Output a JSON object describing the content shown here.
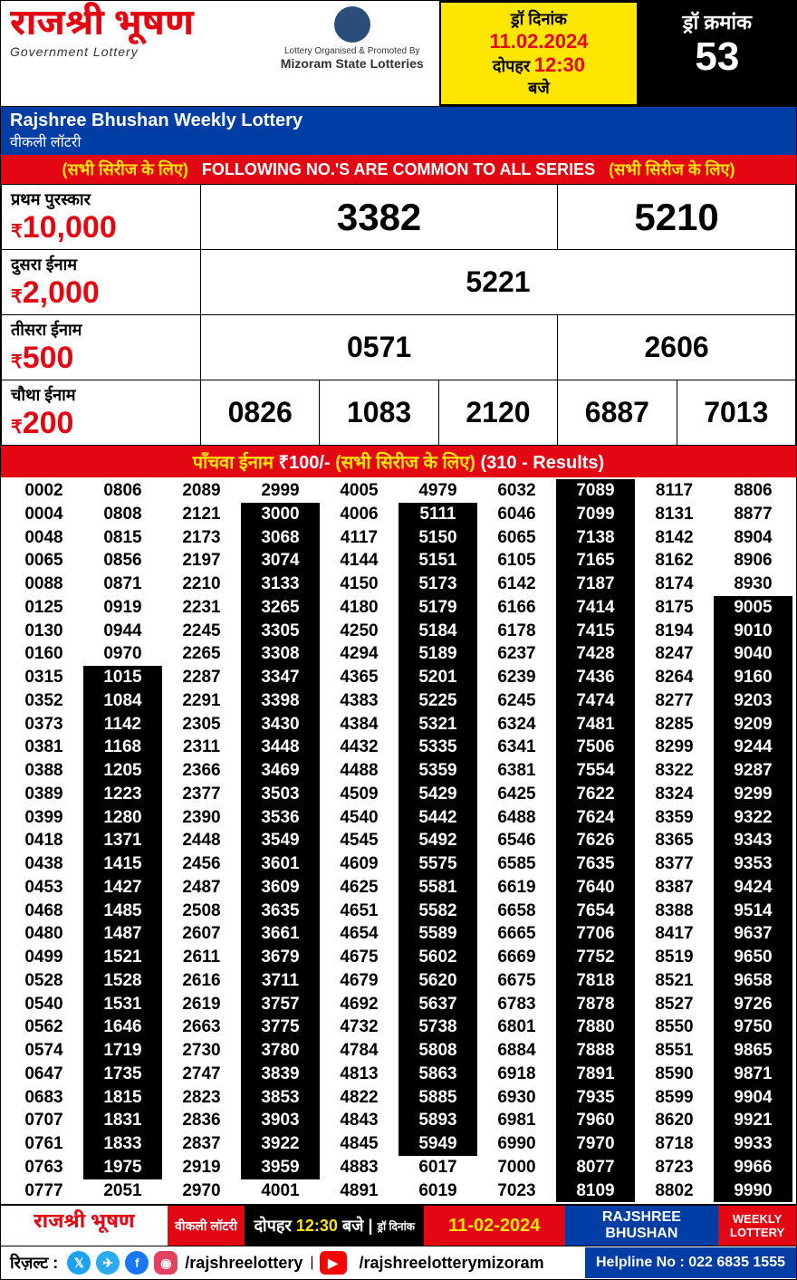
{
  "header": {
    "brand_hi": "राजश्री भूषण",
    "brand_sub": "Government Lottery",
    "org_text": "Lottery Organised & Promoted By",
    "org_name": "Mizoram State Lotteries",
    "date_label": "ड्रॉ दिनांक",
    "date": "11.02.2024",
    "time_prefix": "दोपहर",
    "time": "12:30",
    "time_suffix": "बजे",
    "draw_label": "ड्रॉ क्रमांक",
    "draw_no": "53"
  },
  "subheader": {
    "title": "Rajshree Bhushan Weekly Lottery",
    "sub": "वीकली  लॉटरी"
  },
  "series_banner": {
    "left": "(सभी सिरीज के लिए)",
    "mid": "FOLLOWING NO.'S ARE COMMON TO ALL SERIES",
    "right": "(सभी सिरीज के लिए)"
  },
  "prizes": {
    "first": {
      "label": "प्रथम पुरस्कार",
      "amount": "10,000",
      "numbers": [
        "3382",
        "5210"
      ]
    },
    "second": {
      "label": "दुसरा ईनाम",
      "amount": "2,000",
      "numbers": [
        "5221"
      ]
    },
    "third": {
      "label": "तीसरा ईनाम",
      "amount": "500",
      "numbers": [
        "0571",
        "2606"
      ]
    },
    "fourth": {
      "label": "चौथा ईनाम",
      "amount": "200",
      "numbers": [
        "0826",
        "1083",
        "2120",
        "6887",
        "7013"
      ]
    }
  },
  "fifth_banner": {
    "label": "पाँचवा ईनाम",
    "amount": "₹100/-",
    "note": "(सभी सिरीज  के लिए)",
    "count": "(310 - Results)"
  },
  "grid": {
    "columns": 10,
    "rows": 31,
    "numbers": [
      "0002",
      "0806",
      "2089",
      "2999",
      "4005",
      "4979",
      "6032",
      "7089",
      "8117",
      "8806",
      "0004",
      "0808",
      "2121",
      "3000",
      "4006",
      "5111",
      "6046",
      "7099",
      "8131",
      "8877",
      "0048",
      "0815",
      "2173",
      "3068",
      "4117",
      "5150",
      "6065",
      "7138",
      "8142",
      "8904",
      "0065",
      "0856",
      "2197",
      "3074",
      "4144",
      "5151",
      "6105",
      "7165",
      "8162",
      "8906",
      "0088",
      "0871",
      "2210",
      "3133",
      "4150",
      "5173",
      "6142",
      "7187",
      "8174",
      "8930",
      "0125",
      "0919",
      "2231",
      "3265",
      "4180",
      "5179",
      "6166",
      "7414",
      "8175",
      "9005",
      "0130",
      "0944",
      "2245",
      "3305",
      "4250",
      "5184",
      "6178",
      "7415",
      "8194",
      "9010",
      "0160",
      "0970",
      "2265",
      "3308",
      "4294",
      "5189",
      "6237",
      "7428",
      "8247",
      "9040",
      "0315",
      "1015",
      "2287",
      "3347",
      "4365",
      "5201",
      "6239",
      "7436",
      "8264",
      "9160",
      "0352",
      "1084",
      "2291",
      "3398",
      "4383",
      "5225",
      "6245",
      "7474",
      "8277",
      "9203",
      "0373",
      "1142",
      "2305",
      "3430",
      "4384",
      "5321",
      "6324",
      "7481",
      "8285",
      "9209",
      "0381",
      "1168",
      "2311",
      "3448",
      "4432",
      "5335",
      "6341",
      "7506",
      "8299",
      "9244",
      "0388",
      "1205",
      "2366",
      "3469",
      "4488",
      "5359",
      "6381",
      "7554",
      "8322",
      "9287",
      "0389",
      "1223",
      "2377",
      "3503",
      "4509",
      "5429",
      "6425",
      "7622",
      "8324",
      "9299",
      "0399",
      "1280",
      "2390",
      "3536",
      "4540",
      "5442",
      "6488",
      "7624",
      "8359",
      "9322",
      "0418",
      "1371",
      "2448",
      "3549",
      "4545",
      "5492",
      "6546",
      "7626",
      "8365",
      "9343",
      "0438",
      "1415",
      "2456",
      "3601",
      "4609",
      "5575",
      "6585",
      "7635",
      "8377",
      "9353",
      "0453",
      "1427",
      "2487",
      "3609",
      "4625",
      "5581",
      "6619",
      "7640",
      "8387",
      "9424",
      "0468",
      "1485",
      "2508",
      "3635",
      "4651",
      "5582",
      "6658",
      "7654",
      "8388",
      "9514",
      "0480",
      "1487",
      "2607",
      "3661",
      "4654",
      "5589",
      "6665",
      "7706",
      "8417",
      "9637",
      "0499",
      "1521",
      "2611",
      "3679",
      "4675",
      "5602",
      "6669",
      "7752",
      "8519",
      "9650",
      "0528",
      "1528",
      "2616",
      "3711",
      "4679",
      "5620",
      "6675",
      "7818",
      "8521",
      "9658",
      "0540",
      "1531",
      "2619",
      "3757",
      "4692",
      "5637",
      "6783",
      "7878",
      "8527",
      "9726",
      "0562",
      "1646",
      "2663",
      "3775",
      "4732",
      "5738",
      "6801",
      "7880",
      "8550",
      "9750",
      "0574",
      "1719",
      "2730",
      "3780",
      "4784",
      "5808",
      "6884",
      "7888",
      "8551",
      "9865",
      "0647",
      "1735",
      "2747",
      "3839",
      "4813",
      "5863",
      "6918",
      "7891",
      "8590",
      "9871",
      "0683",
      "1815",
      "2823",
      "3853",
      "4822",
      "5885",
      "6930",
      "7935",
      "8599",
      "9904",
      "0707",
      "1831",
      "2836",
      "3903",
      "4843",
      "5893",
      "6981",
      "7960",
      "8620",
      "9921",
      "0761",
      "1833",
      "2837",
      "3922",
      "4845",
      "5949",
      "6990",
      "7970",
      "8718",
      "9933",
      "0763",
      "1975",
      "2919",
      "3959",
      "4883",
      "6017",
      "7000",
      "8077",
      "8723",
      "9966",
      "0777",
      "2051",
      "2970",
      "4001",
      "4891",
      "6019",
      "7023",
      "8109",
      "8802",
      "9990"
    ],
    "inverted_ranges": [
      {
        "col": 1,
        "start": 8,
        "end": 29
      },
      {
        "col": 3,
        "start": 1,
        "end": 29
      },
      {
        "col": 5,
        "start": 1,
        "end": 28
      },
      {
        "col": 7,
        "start": 0,
        "end": 28
      },
      {
        "col": 7,
        "start": 29,
        "end": 30
      },
      {
        "col": 9,
        "start": 5,
        "end": 30
      }
    ]
  },
  "footer": {
    "brand": "राजश्री भूषण",
    "weekly_hi": "वीकली लॉटरी",
    "time_prefix": "दोपहर",
    "time": "12:30",
    "time_suffix": "बजे",
    "date_lbl": "ड्रॉ दिनांक",
    "date": "11-02-2024",
    "eng": "RAJSHREE BHUSHAN",
    "weekly_en": "WEEKLY LOTTERY",
    "result_label": "रिज़ल्ट :",
    "handle1": "/rajshreelottery",
    "handle2": "/rajshreelotterymizoram",
    "helpline": "Helpline No : 022 6835 1555"
  },
  "colors": {
    "red": "#e30613",
    "blue": "#003da5",
    "yellow": "#ffe600",
    "black": "#000000"
  }
}
